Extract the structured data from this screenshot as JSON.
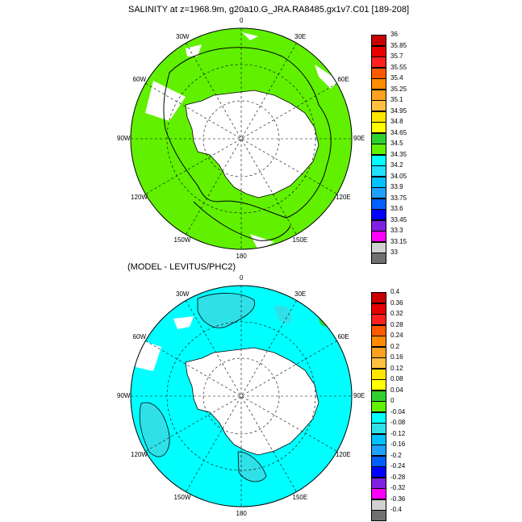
{
  "titles": {
    "top": "SALINITY at z=1968.9m, g20a10.G_JRA.RA8485.gx1v7.C01 [189-208]",
    "bottom": "(MODEL - LEVITUS/PHC2)"
  },
  "chart_data": [
    {
      "type": "heatmap",
      "projection": "south polar stereographic",
      "title": "SALINITY at z=1968.9m, g20a10.G_JRA.RA8485.gx1v7.C01 [189-208]",
      "lon_labels": [
        "0",
        "30E",
        "60E",
        "90E",
        "120E",
        "150E",
        "180",
        "150W",
        "120W",
        "90W",
        "60W",
        "30W"
      ],
      "colorbar": {
        "levels": [
          "36",
          "35.85",
          "35.7",
          "35.55",
          "35.4",
          "35.25",
          "35.1",
          "34.95",
          "34.8",
          "34.65",
          "34.5",
          "34.35",
          "34.2",
          "34.05",
          "33.9",
          "33.75",
          "33.6",
          "33.45",
          "33.3",
          "33.15",
          "33"
        ],
        "colors": [
          "#c80000",
          "#e60000",
          "#ff2020",
          "#ff5a00",
          "#ff8c00",
          "#ffa020",
          "#ffc040",
          "#ffe600",
          "#ffff00",
          "#30d030",
          "#60f000",
          "#00ffff",
          "#20e0ff",
          "#00c0ff",
          "#20a0ff",
          "#0060ff",
          "#0000ff",
          "#8020e0",
          "#ff00ff",
          "#d0d0d0",
          "#707070"
        ]
      },
      "dominant_field": "34.65-34.8 (green) over most of the ocean; land/ice white"
    },
    {
      "type": "heatmap",
      "projection": "south polar stereographic",
      "title": "(MODEL - LEVITUS/PHC2)",
      "lon_labels": [
        "0",
        "30E",
        "60E",
        "90E",
        "120E",
        "150E",
        "180",
        "150W",
        "120W",
        "90W",
        "60W",
        "30W"
      ],
      "colorbar": {
        "levels": [
          "0.4",
          "0.36",
          "0.32",
          "0.28",
          "0.24",
          "0.2",
          "0.16",
          "0.12",
          "0.08",
          "0.04",
          "0",
          "-0.04",
          "-0.08",
          "-0.12",
          "-0.16",
          "-0.2",
          "-0.24",
          "-0.28",
          "-0.32",
          "-0.36",
          "-0.4"
        ],
        "colors": [
          "#c80000",
          "#e60000",
          "#ff2020",
          "#ff5a00",
          "#ff8c00",
          "#ffa020",
          "#ffc040",
          "#ffe600",
          "#ffff00",
          "#30d030",
          "#60f000",
          "#00ffff",
          "#30e0e8",
          "#00c0ff",
          "#20a0ff",
          "#0060ff",
          "#0000ff",
          "#8020e0",
          "#ff00ff",
          "#d0d0d0",
          "#707070"
        ]
      },
      "dominant_field": "-0.04 to 0 (cyan) over most of the ocean, patches of -0.08 to -0.04"
    }
  ]
}
